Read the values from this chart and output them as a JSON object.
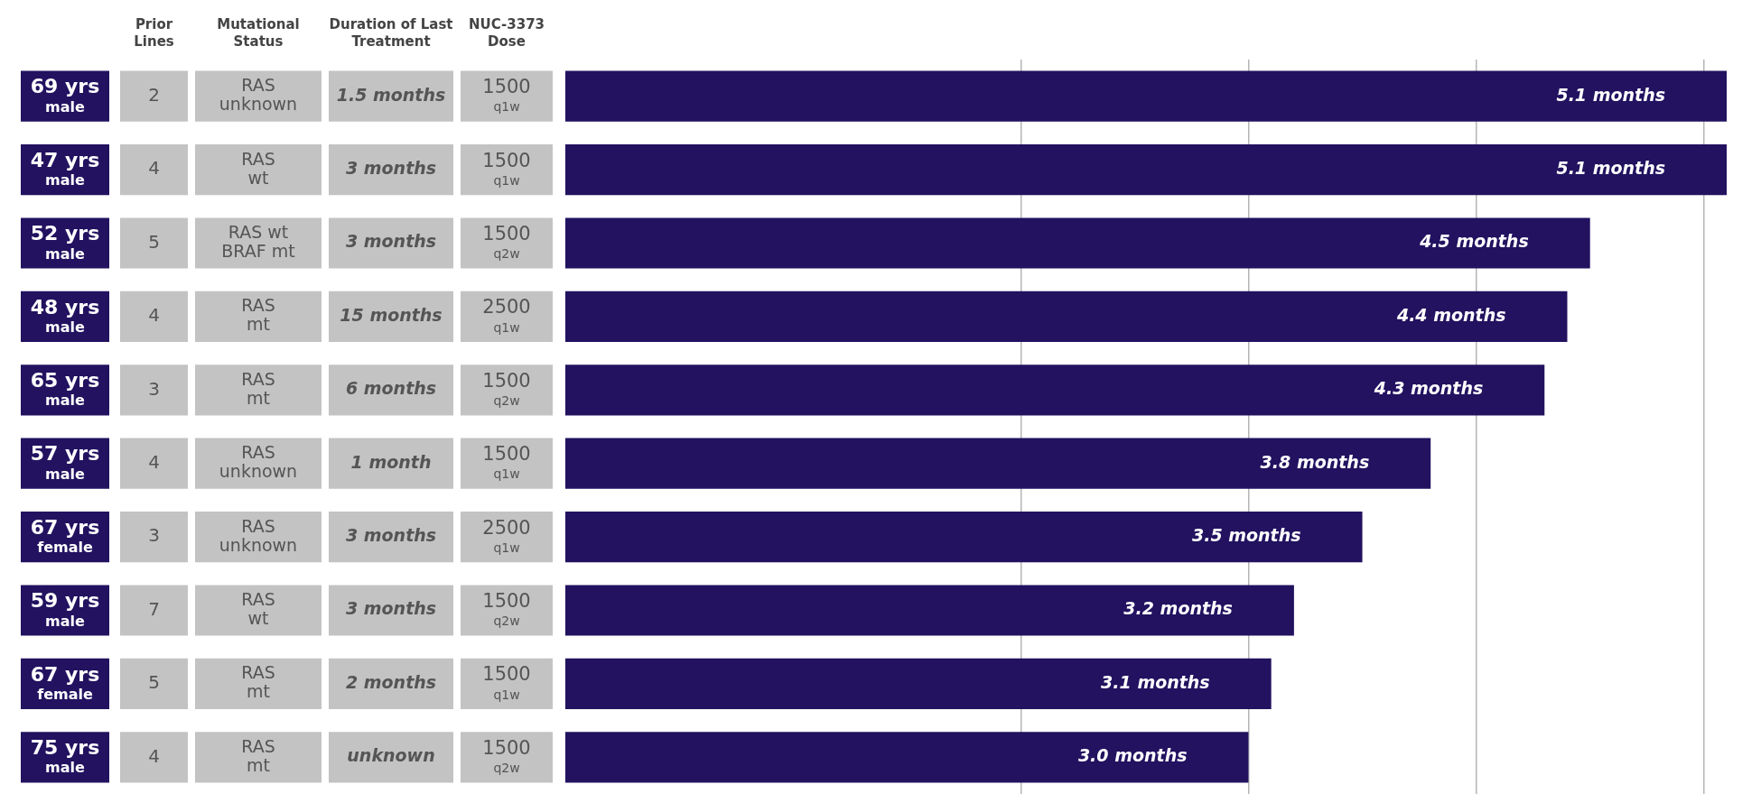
{
  "chart_data": {
    "type": "bar",
    "orientation": "horizontal",
    "categories": [
      "69 yrs\nmale",
      "47 yrs\nmale",
      "52 yrs\nmale",
      "48 yrs\nmale",
      "65 yrs\nmale",
      "57 yrs\nmale",
      "67 yrs\nfemale",
      "59 yrs\nmale",
      "67 yrs\nfemale",
      "75 yrs\nmale"
    ],
    "values": [
      5.1,
      5.1,
      4.5,
      4.4,
      4.3,
      3.8,
      3.5,
      3.2,
      3.1,
      3.0
    ],
    "value_labels": [
      "5.1 months",
      "5.1 months",
      "4.5 months",
      "4.4 months",
      "4.3 months",
      "3.8 months",
      "3.5 months",
      "3.2 months",
      "3.1 months",
      "3.0 months"
    ],
    "color": "#221260",
    "xticks": [
      {
        "value": 2,
        "label": null
      },
      {
        "value": 3,
        "label": null
      },
      {
        "value": 4,
        "label": null
      },
      {
        "value": 5,
        "label": null
      }
    ],
    "grid": "x",
    "tick_labels": "y",
    "legend": false,
    "annotations": [
      "Prior\nLines",
      "Mutational\nStatus",
      "Duration of Last\nTreatment",
      "NUC-3373\nDose",
      "2",
      "RAS\nunknown",
      "1.5 months",
      "1500\nq1w",
      "4",
      "RAS\nwt",
      "3 months",
      "1500\nq1w",
      "5",
      "RAS wt\nBRAF mt",
      "3 months",
      "1500\nq2w",
      "4",
      "RAS\nmt",
      "15 months",
      "2500\nq1w",
      "3",
      "RAS\nmt",
      "6 months",
      "1500\nq2w",
      "4",
      "RAS\nunknown",
      "1 month",
      "1500\nq1w",
      "3",
      "RAS\nunknown",
      "3 months",
      "2500\nq1w",
      "7",
      "RAS\nwt",
      "3 months",
      "1500\nq2w",
      "5",
      "RAS\nmt",
      "2 months",
      "1500\nq1w",
      "4",
      "RAS\nmt",
      "unknown",
      "1500\nq2w"
    ]
  }
}
